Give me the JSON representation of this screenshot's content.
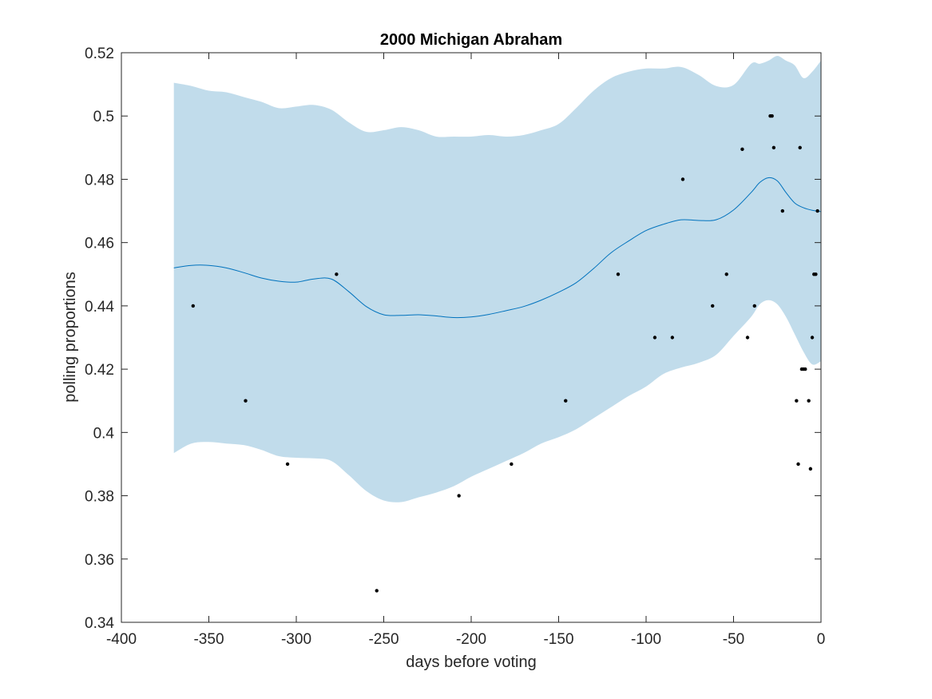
{
  "chart_data": {
    "type": "line",
    "title": "2000 Michigan Abraham",
    "xlabel": "days before voting",
    "ylabel": "polling proportions",
    "xlim": [
      -400,
      0
    ],
    "ylim": [
      0.34,
      0.52
    ],
    "xticks": [
      -400,
      -350,
      -300,
      -250,
      -200,
      -150,
      -100,
      -50,
      0
    ],
    "xtick_labels": [
      "-400",
      "-350",
      "-300",
      "-250",
      "-200",
      "-150",
      "-100",
      "-50",
      "0"
    ],
    "yticks": [
      0.34,
      0.36,
      0.38,
      0.4,
      0.42,
      0.44,
      0.46,
      0.48,
      0.5,
      0.52
    ],
    "ytick_labels": [
      "0.34",
      "0.36",
      "0.38",
      "0.4",
      "0.42",
      "0.44",
      "0.46",
      "0.48",
      "0.5",
      "0.52"
    ],
    "grid": false,
    "colors": {
      "band": "#c1dceb",
      "line": "#0072bd",
      "points": "#000000",
      "axes": "#262626"
    },
    "band": {
      "x": [
        -370,
        -360,
        -350,
        -340,
        -330,
        -320,
        -310,
        -300,
        -290,
        -280,
        -270,
        -260,
        -250,
        -240,
        -230,
        -220,
        -210,
        -200,
        -190,
        -180,
        -170,
        -160,
        -150,
        -140,
        -130,
        -120,
        -110,
        -100,
        -90,
        -80,
        -70,
        -60,
        -50,
        -40,
        -35,
        -30,
        -25,
        -20,
        -15,
        -10,
        -5,
        0
      ],
      "upper": [
        0.5105,
        0.5095,
        0.508,
        0.5075,
        0.506,
        0.5045,
        0.5025,
        0.503,
        0.5035,
        0.502,
        0.498,
        0.495,
        0.4955,
        0.4965,
        0.4955,
        0.4935,
        0.4935,
        0.4935,
        0.494,
        0.4935,
        0.494,
        0.4955,
        0.4975,
        0.5025,
        0.508,
        0.512,
        0.514,
        0.515,
        0.515,
        0.5155,
        0.513,
        0.5095,
        0.5098,
        0.5165,
        0.5165,
        0.5175,
        0.519,
        0.5175,
        0.516,
        0.512,
        0.514,
        0.5175
      ],
      "lower": [
        0.3935,
        0.3965,
        0.397,
        0.3965,
        0.396,
        0.3945,
        0.3925,
        0.392,
        0.3918,
        0.391,
        0.3865,
        0.3815,
        0.3785,
        0.378,
        0.3795,
        0.381,
        0.383,
        0.386,
        0.3885,
        0.391,
        0.3935,
        0.3965,
        0.3985,
        0.401,
        0.4045,
        0.408,
        0.4115,
        0.4145,
        0.4185,
        0.4205,
        0.422,
        0.4245,
        0.4305,
        0.4365,
        0.4405,
        0.4418,
        0.4405,
        0.4365,
        0.431,
        0.4255,
        0.4215,
        0.4225
      ]
    },
    "series": [
      {
        "x": [
          -370,
          -360,
          -350,
          -340,
          -330,
          -320,
          -310,
          -300,
          -290,
          -280,
          -270,
          -260,
          -250,
          -240,
          -230,
          -220,
          -210,
          -200,
          -190,
          -180,
          -170,
          -160,
          -150,
          -140,
          -130,
          -120,
          -110,
          -100,
          -90,
          -80,
          -70,
          -60,
          -50,
          -40,
          -35,
          -30,
          -25,
          -20,
          -15,
          -10,
          -5,
          0
        ],
        "y": [
          0.452,
          0.4528,
          0.4528,
          0.452,
          0.4505,
          0.4488,
          0.4478,
          0.4475,
          0.4485,
          0.4485,
          0.4445,
          0.4398,
          0.4372,
          0.437,
          0.4372,
          0.4368,
          0.4363,
          0.4365,
          0.4373,
          0.4385,
          0.4398,
          0.4418,
          0.4443,
          0.4473,
          0.4518,
          0.4568,
          0.4605,
          0.4638,
          0.4658,
          0.4672,
          0.467,
          0.4672,
          0.4703,
          0.4758,
          0.479,
          0.4805,
          0.4795,
          0.4758,
          0.4725,
          0.471,
          0.4702,
          0.4698
        ]
      }
    ],
    "points": {
      "x": [
        -359,
        -329,
        -305,
        -277,
        -254,
        -207,
        -177,
        -146,
        -116,
        -95,
        -85,
        -79,
        -62,
        -54,
        -45,
        -42,
        -38,
        -29,
        -28,
        -27,
        -22,
        -14,
        -13,
        -12,
        -11,
        -10,
        -9,
        -7,
        -6,
        -5,
        -4,
        -3,
        -2
      ],
      "y": [
        0.44,
        0.41,
        0.39,
        0.45,
        0.35,
        0.38,
        0.39,
        0.41,
        0.45,
        0.43,
        0.43,
        0.48,
        0.44,
        0.45,
        0.4895,
        0.43,
        0.44,
        0.5,
        0.5,
        0.49,
        0.47,
        0.41,
        0.39,
        0.49,
        0.42,
        0.42,
        0.42,
        0.41,
        0.3885,
        0.43,
        0.45,
        0.45,
        0.47
      ]
    }
  }
}
